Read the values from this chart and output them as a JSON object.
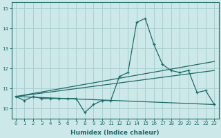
{
  "xlabel": "Humidex (Indice chaleur)",
  "background_color": "#cce8e8",
  "grid_color": "#aacfcf",
  "line_color": "#1a6b6b",
  "xlim": [
    -0.5,
    23.5
  ],
  "ylim": [
    9.5,
    15.3
  ],
  "yticks": [
    10,
    11,
    12,
    13,
    14,
    15
  ],
  "xticks": [
    0,
    1,
    2,
    3,
    4,
    5,
    6,
    7,
    8,
    9,
    10,
    11,
    12,
    13,
    14,
    15,
    16,
    17,
    18,
    19,
    20,
    21,
    22,
    23
  ],
  "series1_x": [
    0,
    1,
    2,
    3,
    4,
    5,
    6,
    7,
    8,
    9,
    10,
    11,
    12,
    13,
    14,
    15,
    16,
    17,
    18,
    19,
    20,
    21,
    22,
    23
  ],
  "series1_y": [
    10.6,
    10.4,
    10.6,
    10.5,
    10.5,
    10.5,
    10.5,
    10.5,
    9.8,
    10.2,
    10.4,
    10.4,
    11.6,
    11.8,
    14.3,
    14.5,
    13.2,
    12.2,
    11.9,
    11.8,
    11.9,
    10.8,
    10.9,
    10.2
  ],
  "series2_x": [
    0,
    23
  ],
  "series2_y": [
    10.6,
    10.2
  ],
  "series3_x": [
    0,
    23
  ],
  "series3_y": [
    10.6,
    11.9
  ],
  "series4_x": [
    0,
    23
  ],
  "series4_y": [
    10.6,
    12.35
  ]
}
